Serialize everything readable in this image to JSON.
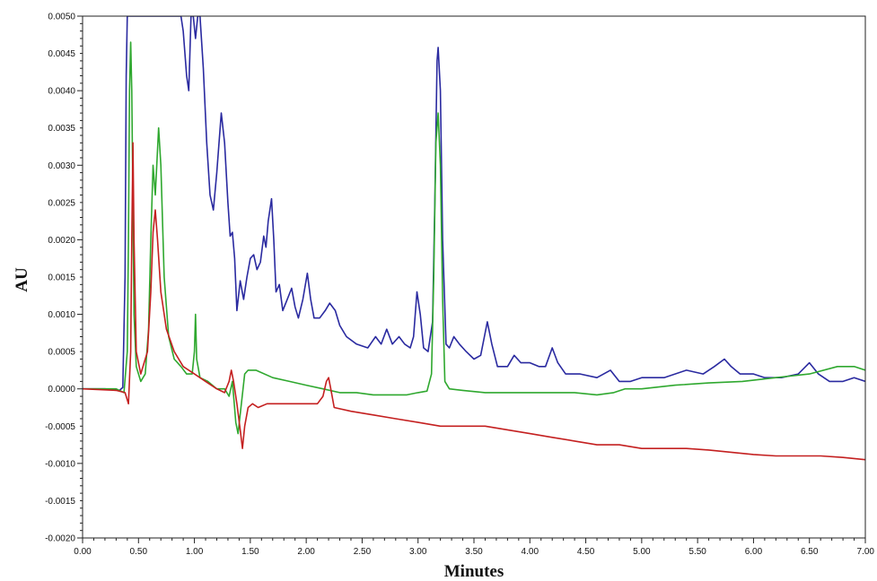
{
  "chart_data": {
    "type": "line",
    "title": "",
    "xlabel": "Minutes",
    "ylabel": "AU",
    "xlim": [
      0.0,
      7.0
    ],
    "ylim": [
      -0.002,
      0.005
    ],
    "x_ticks": [
      "0.00",
      "0.50",
      "1.00",
      "1.50",
      "2.00",
      "2.50",
      "3.00",
      "3.50",
      "4.00",
      "4.50",
      "5.00",
      "5.50",
      "6.00",
      "6.50",
      "7.00"
    ],
    "y_ticks": [
      "0.0050",
      "0.0045",
      "0.0040",
      "0.0035",
      "0.0030",
      "0.0025",
      "0.0020",
      "0.0015",
      "0.0010",
      "0.0005",
      "0.0000",
      "-0.0005",
      "-0.0010",
      "-0.0015",
      "-0.0020"
    ],
    "grid": false,
    "legend": "none",
    "series": [
      {
        "color": "#2a2aa0",
        "points": [
          [
            0.0,
            0.0
          ],
          [
            0.2,
            0.0
          ],
          [
            0.33,
            -2e-05
          ],
          [
            0.36,
            2e-05
          ],
          [
            0.38,
            0.0015
          ],
          [
            0.39,
            0.0042
          ],
          [
            0.4,
            0.005
          ],
          [
            0.42,
            0.005
          ],
          [
            0.44,
            0.005
          ],
          [
            0.46,
            0.005
          ],
          [
            0.5,
            0.005
          ],
          [
            0.6,
            0.005
          ],
          [
            0.7,
            0.005
          ],
          [
            0.8,
            0.005
          ],
          [
            0.88,
            0.005
          ],
          [
            0.9,
            0.0048
          ],
          [
            0.93,
            0.0042
          ],
          [
            0.95,
            0.004
          ],
          [
            0.97,
            0.005
          ],
          [
            0.99,
            0.005
          ],
          [
            1.01,
            0.0047
          ],
          [
            1.03,
            0.005
          ],
          [
            1.05,
            0.005
          ],
          [
            1.08,
            0.0043
          ],
          [
            1.11,
            0.0033
          ],
          [
            1.14,
            0.0026
          ],
          [
            1.17,
            0.0024
          ],
          [
            1.2,
            0.0029
          ],
          [
            1.24,
            0.0037
          ],
          [
            1.27,
            0.0033
          ],
          [
            1.3,
            0.0025
          ],
          [
            1.32,
            0.00205
          ],
          [
            1.34,
            0.0021
          ],
          [
            1.36,
            0.00175
          ],
          [
            1.38,
            0.00105
          ],
          [
            1.41,
            0.00145
          ],
          [
            1.44,
            0.0012
          ],
          [
            1.47,
            0.0015
          ],
          [
            1.5,
            0.00175
          ],
          [
            1.53,
            0.0018
          ],
          [
            1.56,
            0.0016
          ],
          [
            1.59,
            0.0017
          ],
          [
            1.62,
            0.00205
          ],
          [
            1.64,
            0.0019
          ],
          [
            1.66,
            0.00225
          ],
          [
            1.69,
            0.00255
          ],
          [
            1.71,
            0.002
          ],
          [
            1.73,
            0.0013
          ],
          [
            1.76,
            0.0014
          ],
          [
            1.79,
            0.00105
          ],
          [
            1.83,
            0.0012
          ],
          [
            1.87,
            0.00135
          ],
          [
            1.9,
            0.0011
          ],
          [
            1.93,
            0.00095
          ],
          [
            1.97,
            0.0012
          ],
          [
            2.01,
            0.00155
          ],
          [
            2.04,
            0.0012
          ],
          [
            2.07,
            0.00095
          ],
          [
            2.12,
            0.00095
          ],
          [
            2.17,
            0.00105
          ],
          [
            2.21,
            0.00115
          ],
          [
            2.26,
            0.00105
          ],
          [
            2.3,
            0.00085
          ],
          [
            2.36,
            0.0007
          ],
          [
            2.45,
            0.0006
          ],
          [
            2.55,
            0.00055
          ],
          [
            2.62,
            0.0007
          ],
          [
            2.67,
            0.0006
          ],
          [
            2.72,
            0.0008
          ],
          [
            2.77,
            0.0006
          ],
          [
            2.83,
            0.0007
          ],
          [
            2.88,
            0.0006
          ],
          [
            2.93,
            0.00055
          ],
          [
            2.96,
            0.0007
          ],
          [
            2.99,
            0.0013
          ],
          [
            3.02,
            0.001
          ],
          [
            3.05,
            0.00055
          ],
          [
            3.09,
            0.0005
          ],
          [
            3.13,
            0.0009
          ],
          [
            3.15,
            0.0025
          ],
          [
            3.17,
            0.0044
          ],
          [
            3.18,
            0.00458
          ],
          [
            3.2,
            0.004
          ],
          [
            3.22,
            0.002
          ],
          [
            3.25,
            0.0006
          ],
          [
            3.28,
            0.00055
          ],
          [
            3.32,
            0.0007
          ],
          [
            3.37,
            0.0006
          ],
          [
            3.43,
            0.0005
          ],
          [
            3.5,
            0.0004
          ],
          [
            3.56,
            0.00045
          ],
          [
            3.62,
            0.0009
          ],
          [
            3.66,
            0.0006
          ],
          [
            3.71,
            0.0003
          ],
          [
            3.8,
            0.0003
          ],
          [
            3.86,
            0.00045
          ],
          [
            3.92,
            0.00035
          ],
          [
            4.0,
            0.00035
          ],
          [
            4.08,
            0.0003
          ],
          [
            4.14,
            0.0003
          ],
          [
            4.2,
            0.00055
          ],
          [
            4.25,
            0.00035
          ],
          [
            4.32,
            0.0002
          ],
          [
            4.45,
            0.0002
          ],
          [
            4.6,
            0.00015
          ],
          [
            4.72,
            0.00025
          ],
          [
            4.8,
            0.0001
          ],
          [
            4.9,
            0.0001
          ],
          [
            5.0,
            0.00015
          ],
          [
            5.2,
            0.00015
          ],
          [
            5.4,
            0.00025
          ],
          [
            5.55,
            0.0002
          ],
          [
            5.65,
            0.0003
          ],
          [
            5.74,
            0.0004
          ],
          [
            5.8,
            0.0003
          ],
          [
            5.88,
            0.0002
          ],
          [
            6.0,
            0.0002
          ],
          [
            6.1,
            0.00015
          ],
          [
            6.25,
            0.00015
          ],
          [
            6.4,
            0.0002
          ],
          [
            6.5,
            0.00035
          ],
          [
            6.58,
            0.0002
          ],
          [
            6.68,
            0.0001
          ],
          [
            6.8,
            0.0001
          ],
          [
            6.9,
            0.00015
          ],
          [
            7.0,
            0.0001
          ]
        ]
      },
      {
        "color": "#2fa82f",
        "points": [
          [
            0.0,
            0.0
          ],
          [
            0.3,
            0.0
          ],
          [
            0.37,
            -5e-05
          ],
          [
            0.4,
            0.0005
          ],
          [
            0.41,
            0.002
          ],
          [
            0.42,
            0.004
          ],
          [
            0.43,
            0.00465
          ],
          [
            0.44,
            0.004
          ],
          [
            0.46,
            0.001
          ],
          [
            0.48,
            0.0003
          ],
          [
            0.52,
            0.0001
          ],
          [
            0.56,
            0.0002
          ],
          [
            0.59,
            0.0008
          ],
          [
            0.61,
            0.002
          ],
          [
            0.63,
            0.003
          ],
          [
            0.65,
            0.0026
          ],
          [
            0.68,
            0.0035
          ],
          [
            0.7,
            0.003
          ],
          [
            0.73,
            0.0015
          ],
          [
            0.77,
            0.0007
          ],
          [
            0.82,
            0.0004
          ],
          [
            0.88,
            0.0003
          ],
          [
            0.93,
            0.0002
          ],
          [
            0.98,
            0.0002
          ],
          [
            1.0,
            0.0005
          ],
          [
            1.01,
            0.001
          ],
          [
            1.02,
            0.0004
          ],
          [
            1.05,
            0.00015
          ],
          [
            1.12,
            0.0001
          ],
          [
            1.2,
            0.0
          ],
          [
            1.27,
            0.0
          ],
          [
            1.31,
            -0.0001
          ],
          [
            1.34,
            0.0001
          ],
          [
            1.37,
            -0.00045
          ],
          [
            1.39,
            -0.0006
          ],
          [
            1.42,
            -0.0002
          ],
          [
            1.45,
            0.0002
          ],
          [
            1.48,
            0.00025
          ],
          [
            1.55,
            0.00025
          ],
          [
            1.7,
            0.00015
          ],
          [
            1.85,
            0.0001
          ],
          [
            2.0,
            5e-05
          ],
          [
            2.15,
            0.0
          ],
          [
            2.3,
            -5e-05
          ],
          [
            2.45,
            -5e-05
          ],
          [
            2.6,
            -8e-05
          ],
          [
            2.75,
            -8e-05
          ],
          [
            2.9,
            -8e-05
          ],
          [
            3.0,
            -5e-05
          ],
          [
            3.08,
            -3e-05
          ],
          [
            3.12,
            0.0002
          ],
          [
            3.14,
            0.0015
          ],
          [
            3.16,
            0.0033
          ],
          [
            3.18,
            0.0037
          ],
          [
            3.2,
            0.003
          ],
          [
            3.22,
            0.0012
          ],
          [
            3.24,
            0.0001
          ],
          [
            3.28,
            0.0
          ],
          [
            3.4,
            -2e-05
          ],
          [
            3.6,
            -5e-05
          ],
          [
            3.8,
            -5e-05
          ],
          [
            4.0,
            -5e-05
          ],
          [
            4.2,
            -5e-05
          ],
          [
            4.4,
            -5e-05
          ],
          [
            4.6,
            -8e-05
          ],
          [
            4.75,
            -5e-05
          ],
          [
            4.85,
            0.0
          ],
          [
            5.0,
            0.0
          ],
          [
            5.3,
            5e-05
          ],
          [
            5.6,
            8e-05
          ],
          [
            5.9,
            0.0001
          ],
          [
            6.2,
            0.00015
          ],
          [
            6.5,
            0.0002
          ],
          [
            6.75,
            0.0003
          ],
          [
            6.9,
            0.0003
          ],
          [
            7.0,
            0.00025
          ]
        ]
      },
      {
        "color": "#c42020",
        "points": [
          [
            0.0,
            0.0
          ],
          [
            0.3,
            -2e-05
          ],
          [
            0.38,
            -5e-05
          ],
          [
            0.41,
            -0.0002
          ],
          [
            0.43,
            0.0005
          ],
          [
            0.44,
            0.002
          ],
          [
            0.45,
            0.0033
          ],
          [
            0.46,
            0.002
          ],
          [
            0.48,
            0.0005
          ],
          [
            0.52,
            0.0002
          ],
          [
            0.58,
            0.0005
          ],
          [
            0.61,
            0.0013
          ],
          [
            0.63,
            0.0021
          ],
          [
            0.65,
            0.0024
          ],
          [
            0.67,
            0.002
          ],
          [
            0.7,
            0.0013
          ],
          [
            0.75,
            0.0008
          ],
          [
            0.82,
            0.0005
          ],
          [
            0.9,
            0.0003
          ],
          [
            1.0,
            0.0002
          ],
          [
            1.1,
            0.0001
          ],
          [
            1.2,
            0.0
          ],
          [
            1.27,
            -5e-05
          ],
          [
            1.31,
            0.0001
          ],
          [
            1.33,
            0.00025
          ],
          [
            1.35,
            0.0001
          ],
          [
            1.38,
            -0.0002
          ],
          [
            1.41,
            -0.00055
          ],
          [
            1.43,
            -0.0008
          ],
          [
            1.45,
            -0.0005
          ],
          [
            1.48,
            -0.00025
          ],
          [
            1.52,
            -0.0002
          ],
          [
            1.57,
            -0.00025
          ],
          [
            1.65,
            -0.0002
          ],
          [
            1.8,
            -0.0002
          ],
          [
            1.95,
            -0.0002
          ],
          [
            2.1,
            -0.0002
          ],
          [
            2.15,
            -0.0001
          ],
          [
            2.18,
            0.0001
          ],
          [
            2.2,
            0.00015
          ],
          [
            2.22,
            0.0
          ],
          [
            2.25,
            -0.00025
          ],
          [
            2.4,
            -0.0003
          ],
          [
            2.6,
            -0.00035
          ],
          [
            2.8,
            -0.0004
          ],
          [
            3.0,
            -0.00045
          ],
          [
            3.2,
            -0.0005
          ],
          [
            3.4,
            -0.0005
          ],
          [
            3.6,
            -0.0005
          ],
          [
            3.8,
            -0.00055
          ],
          [
            4.0,
            -0.0006
          ],
          [
            4.2,
            -0.00065
          ],
          [
            4.4,
            -0.0007
          ],
          [
            4.6,
            -0.00075
          ],
          [
            4.8,
            -0.00075
          ],
          [
            5.0,
            -0.0008
          ],
          [
            5.2,
            -0.0008
          ],
          [
            5.4,
            -0.0008
          ],
          [
            5.6,
            -0.00082
          ],
          [
            5.8,
            -0.00085
          ],
          [
            6.0,
            -0.00088
          ],
          [
            6.2,
            -0.0009
          ],
          [
            6.4,
            -0.0009
          ],
          [
            6.6,
            -0.0009
          ],
          [
            6.8,
            -0.00092
          ],
          [
            7.0,
            -0.00095
          ]
        ]
      }
    ]
  }
}
